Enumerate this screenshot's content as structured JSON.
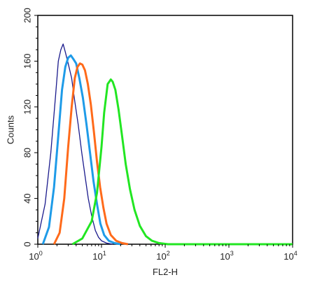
{
  "chart_data": {
    "type": "line",
    "title": "",
    "xlabel": "FL2-H",
    "ylabel": "Counts",
    "xscale": "log",
    "xlim": [
      1,
      10000
    ],
    "ylim": [
      0,
      200
    ],
    "x_ticks": [
      {
        "base": "10",
        "exp": "0",
        "value": 1
      },
      {
        "base": "10",
        "exp": "1",
        "value": 10
      },
      {
        "base": "10",
        "exp": "2",
        "value": 100
      },
      {
        "base": "10",
        "exp": "3",
        "value": 1000
      },
      {
        "base": "10",
        "exp": "4",
        "value": 10000
      }
    ],
    "y_ticks": [
      "0",
      "40",
      "80",
      "120",
      "160",
      "200"
    ],
    "grid": false,
    "series": [
      {
        "color": "#1a1a8c",
        "x": [
          1.0,
          1.3,
          1.6,
          1.9,
          2.1,
          2.3,
          2.5,
          2.7,
          3.0,
          3.4,
          3.8,
          4.3,
          4.9,
          5.5,
          6.2,
          7.0,
          8.0,
          9.0,
          10,
          12,
          15
        ],
        "y": [
          5,
          35,
          80,
          130,
          160,
          170,
          175,
          168,
          158,
          145,
          125,
          105,
          80,
          60,
          40,
          25,
          12,
          6,
          3,
          1,
          0
        ]
      },
      {
        "color": "#1e9be8",
        "x": [
          1.2,
          1.5,
          1.8,
          2.1,
          2.4,
          2.7,
          3.0,
          3.3,
          3.6,
          4.0,
          4.5,
          5.1,
          5.8,
          6.6,
          7.5,
          8.5,
          9.6,
          11,
          13,
          16,
          20
        ],
        "y": [
          0,
          15,
          50,
          95,
          135,
          155,
          163,
          165,
          162,
          158,
          145,
          128,
          105,
          80,
          55,
          35,
          18,
          8,
          3,
          1,
          0
        ]
      },
      {
        "color": "#ff6a1a",
        "x": [
          1.8,
          2.2,
          2.6,
          3.0,
          3.4,
          3.8,
          4.2,
          4.6,
          5.0,
          5.5,
          6.1,
          6.8,
          7.6,
          8.5,
          9.5,
          10.7,
          12,
          14,
          17,
          21,
          26
        ],
        "y": [
          0,
          10,
          40,
          85,
          120,
          145,
          155,
          158,
          157,
          152,
          140,
          122,
          98,
          72,
          50,
          32,
          18,
          8,
          3,
          1,
          0
        ]
      },
      {
        "color": "#22e622",
        "x": [
          3.5,
          5,
          7,
          8.5,
          10,
          11,
          12.5,
          14,
          15,
          16.5,
          18.5,
          21,
          24,
          28,
          33,
          40,
          50,
          62,
          80,
          110,
          200,
          10000
        ],
        "y": [
          0,
          5,
          20,
          45,
          85,
          115,
          140,
          144,
          142,
          135,
          118,
          95,
          70,
          48,
          30,
          16,
          7,
          3,
          1,
          0,
          0,
          0
        ]
      }
    ]
  }
}
